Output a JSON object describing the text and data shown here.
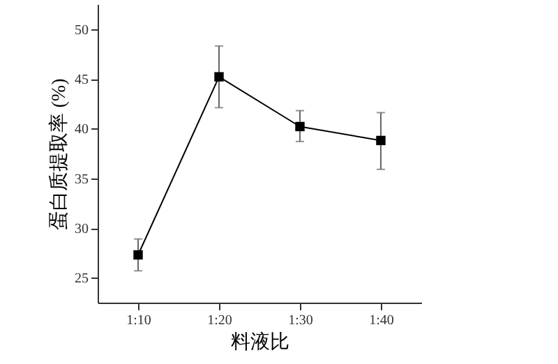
{
  "chart_data": {
    "type": "line",
    "xlabel": "料液比",
    "ylabel": "蛋白质提取率 (%)",
    "categories": [
      "1:10",
      "1:20",
      "1:30",
      "1:40"
    ],
    "series": [
      {
        "color": "#000000",
        "values": [
          27.3,
          45.2,
          40.2,
          38.8
        ],
        "errors": [
          [
            25.7,
            28.9
          ],
          [
            42.1,
            48.3
          ],
          [
            38.7,
            41.8
          ],
          [
            35.9,
            41.6
          ]
        ]
      }
    ],
    "ylim": [
      22.5,
      52.5
    ],
    "yticks": [
      25,
      30,
      35,
      40,
      45,
      50
    ],
    "marker": "square",
    "line_style": "solid",
    "grid": false
  }
}
